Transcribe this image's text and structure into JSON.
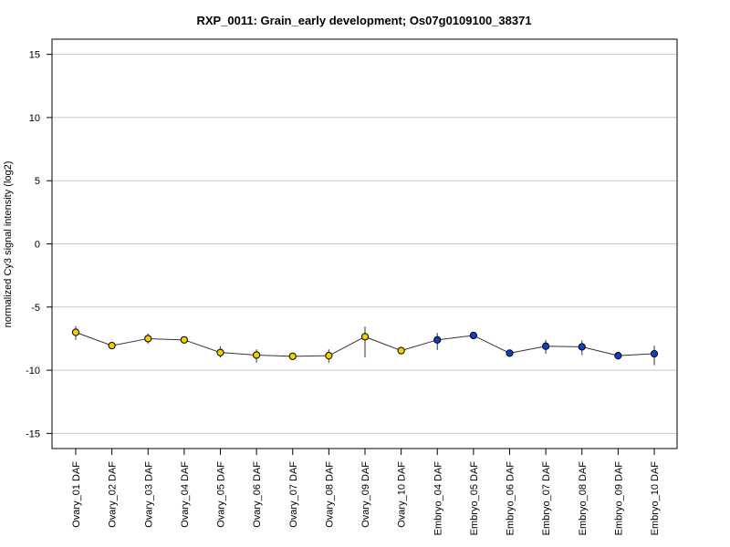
{
  "chart_data": {
    "type": "line",
    "title": "RXP_0011: Grain_early development; Os07g0109100_38371",
    "xlabel": "",
    "ylabel": "normalized Cy3 signal intensity (log2)",
    "ylim": [
      -16.2,
      16.2
    ],
    "yticks": [
      -15,
      -10,
      -5,
      0,
      5,
      10,
      15
    ],
    "grid": "horizontal",
    "legend": "none",
    "categories": [
      "Ovary_01 DAF",
      "Ovary_02 DAF",
      "Ovary_03 DAF",
      "Ovary_04 DAF",
      "Ovary_05 DAF",
      "Ovary_06 DAF",
      "Ovary_07 DAF",
      "Ovary_08 DAF",
      "Ovary_09 DAF",
      "Ovary_10 DAF",
      "Embryo_04 DAF",
      "Embryo_05 DAF",
      "Embryo_06 DAF",
      "Embryo_07 DAF",
      "Embryo_08 DAF",
      "Embryo_09 DAF",
      "Embryo_10 DAF"
    ],
    "series": [
      {
        "values": [
          -7.0,
          -8.05,
          -7.5,
          -7.6,
          -8.6,
          -8.8,
          -8.9,
          -8.85,
          -7.35,
          -8.45,
          -7.6,
          -7.25,
          -8.65,
          -8.1,
          -8.15,
          -8.85,
          -8.7
        ],
        "error_low": [
          -7.6,
          -8.2,
          -7.9,
          -7.75,
          -9.0,
          -9.4,
          -9.05,
          -9.4,
          -9.0,
          -8.65,
          -8.4,
          -7.55,
          -8.8,
          -8.7,
          -8.8,
          -9.15,
          -9.6
        ],
        "error_high": [
          -6.5,
          -7.9,
          -7.1,
          -7.45,
          -8.1,
          -8.35,
          -8.75,
          -8.35,
          -6.55,
          -8.2,
          -7.05,
          -7.0,
          -8.45,
          -7.6,
          -7.65,
          -8.6,
          -8.05
        ],
        "point_colors": [
          "#f0d000",
          "#f0d000",
          "#f0d000",
          "#f0d000",
          "#f0d000",
          "#f0d000",
          "#f0d000",
          "#f0d000",
          "#f0d000",
          "#f0d000",
          "#1040c8",
          "#1040c8",
          "#1040c8",
          "#1040c8",
          "#1040c8",
          "#1040c8",
          "#1040c8"
        ]
      }
    ]
  }
}
